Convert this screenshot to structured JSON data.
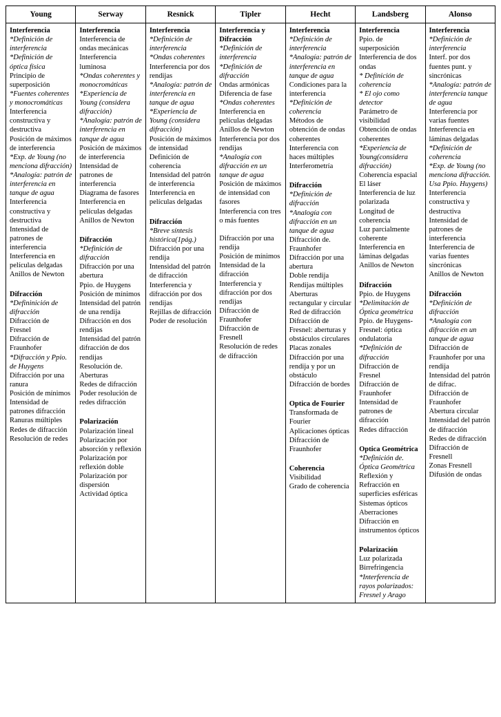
{
  "headers": [
    "Young",
    "Serway",
    "Resnick",
    "Tipler",
    "Hecht",
    "Landsberg",
    "Alonso"
  ],
  "columns": [
    {
      "lines": [
        {
          "t": "Interferencia",
          "b": true
        },
        {
          "t": "*Definición de interferencia",
          "i": true
        },
        {
          "t": "*Definición de óptica física",
          "i": true
        },
        {
          "t": "Principio de superposición"
        },
        {
          "t": "*Fuentes coherentes y monocromáticas",
          "i": true
        },
        {
          "t": "Interferencia constructiva y destructiva"
        },
        {
          "t": "Posición de máximos de interferencia"
        },
        {
          "t": "*Exp. de Young (no menciona difracción)",
          "i": true
        },
        {
          "t": "*Analogía: patrón de interferencia en tanque de agua",
          "i": true
        },
        {
          "t": "Interferencia constructiva y destructiva"
        },
        {
          "t": "Intensidad de patrones de interferencia"
        },
        {
          "t": "Interferencia en películas delgadas"
        },
        {
          "t": "Anillos  de Newton"
        },
        {
          "t": " "
        },
        {
          "t": "Difracción",
          "b": true
        },
        {
          "t": "*Defininición de difracción",
          "i": true
        },
        {
          "t": "Difracción de Fresnel"
        },
        {
          "t": "Difracción  de Fraunhofer"
        },
        {
          "t": "*Difracción y Ppio. de Huygens",
          "i": true
        },
        {
          "t": "Difracción por una ranura"
        },
        {
          "t": "Posición de mínimos"
        },
        {
          "t": "Intensidad de patrones difracción"
        },
        {
          "t": "Ranuras múltiples"
        },
        {
          "t": "Redes de difracción"
        },
        {
          "t": "Resolución de redes"
        }
      ]
    },
    {
      "lines": [
        {
          "t": "Interferencia",
          "b": true
        },
        {
          "t": "Interferencia de ondas mecánicas"
        },
        {
          "t": "Interferencia luminosa"
        },
        {
          "t": "*Ondas coherentes y monocromáticas",
          "i": true
        },
        {
          "t": "*Experiencia de Young (considera difracción)",
          "i": true
        },
        {
          "t": "*Analogía: patrón de interferencia en tanque de agua",
          "i": true
        },
        {
          "t": "Posición de máximos de interferencia"
        },
        {
          "t": "Intensidad de patrones de interferencia"
        },
        {
          "t": "Diagrama de fasores"
        },
        {
          "t": "Interferencia en películas delgadas"
        },
        {
          "t": "Anillos de Newton"
        },
        {
          "t": " "
        },
        {
          "t": "Difracción",
          "b": true
        },
        {
          "t": "*Definición de difracción",
          "i": true
        },
        {
          "t": "Difracción por una abertura"
        },
        {
          "t": "Ppio. de Huygens"
        },
        {
          "t": "Posición de mínimos"
        },
        {
          "t": "Intensidad del patrón de una rendija"
        },
        {
          "t": "Difracción en dos rendijas"
        },
        {
          "t": "Intensidad del patrón difracción de dos rendijas"
        },
        {
          "t": "Resolución de. Aberturas"
        },
        {
          "t": "Redes de difracción"
        },
        {
          "t": "Poder resolución de redes difracción"
        },
        {
          "t": " "
        },
        {
          "t": "Polarización",
          "b": true
        },
        {
          "t": "Polarización lineal"
        },
        {
          "t": "Polarización por absorción y reflexión"
        },
        {
          "t": "Polarización por reflexión doble"
        },
        {
          "t": "Polarización por dispersión"
        },
        {
          "t": "Actividad óptica"
        }
      ]
    },
    {
      "lines": [
        {
          "t": "Interferencia",
          "b": true
        },
        {
          "t": "*Definición de interferencia",
          "i": true
        },
        {
          "t": "*Ondas coherentes",
          "i": true
        },
        {
          "t": "Interferencia por dos rendijas"
        },
        {
          "t": "*Analogía: patrón de interferencia en tanque de agua",
          "i": true
        },
        {
          "t": "*Experiencia de Young (considera difracción)",
          "i": true
        },
        {
          "t": "Posición de máximos de intensidad"
        },
        {
          "t": "Definición de coherencia"
        },
        {
          "t": "Intensidad del patrón de interferencia"
        },
        {
          "t": "Interferencia  en películas delgadas"
        },
        {
          "t": " "
        },
        {
          "t": "Difracción",
          "b": true
        },
        {
          "t": "*Breve síntesis histórica(1pág.)",
          "i": true
        },
        {
          "t": "Difracción por una rendija"
        },
        {
          "t": "Intensidad del patrón de difracción"
        },
        {
          "t": "Interferencia y difracción por dos rendijas"
        },
        {
          "t": "Rejillas de difracción"
        },
        {
          "t": "Poder de resolución"
        }
      ]
    },
    {
      "lines": [
        {
          "t": "Interferencia y Difracción",
          "b": true
        },
        {
          "t": "*Definición de interferencia",
          "i": true
        },
        {
          "t": "*Definición de difracción",
          "i": true
        },
        {
          "t": "Ondas armónicas"
        },
        {
          "t": "Diferencia de fase"
        },
        {
          "t": "*Ondas coherentes",
          "i": true
        },
        {
          "t": "Interferencia  en películas delgadas"
        },
        {
          "t": "Anillos de Newton"
        },
        {
          "t": "Interferencia por dos rendijas"
        },
        {
          "t": "*Analogía con difracción en un tanque de agua",
          "i": true
        },
        {
          "t": "Posición de máximos de intensidad con fasores"
        },
        {
          "t": "Interferencia  con tres o más fuentes"
        },
        {
          "t": " "
        },
        {
          "t": "Difracción por una rendija"
        },
        {
          "t": "Posición de mínimos"
        },
        {
          "t": "Intensidad de la difracción"
        },
        {
          "t": "Interferencia y difracción por dos rendijas"
        },
        {
          "t": "Difracción  de Fraunhofer"
        },
        {
          "t": "Difracción de Fresnell"
        },
        {
          "t": "Resolución de redes de difracción"
        }
      ]
    },
    {
      "lines": [
        {
          "t": "Interferencia",
          "b": true
        },
        {
          "t": "*Definición de interferencia",
          "i": true
        },
        {
          "t": "*Analogía: patrón de interferencia  en tanque de agua",
          "i": true
        },
        {
          "t": "Condiciones para la interferencia"
        },
        {
          "t": "*Definición de coherencia",
          "i": true
        },
        {
          "t": "Métodos de obtención  de ondas coherentes"
        },
        {
          "t": "Interferencia con haces múltiples"
        },
        {
          "t": "Interferometría"
        },
        {
          "t": " "
        },
        {
          "t": "Difracción",
          "b": true
        },
        {
          "t": "*Definición de difracción",
          "i": true
        },
        {
          "t": "*Analogía con difracción en un tanque de agua",
          "i": true
        },
        {
          "t": "Difracción de. Fraunhofer"
        },
        {
          "t": "Difracción por una abertura"
        },
        {
          "t": "Doble rendija"
        },
        {
          "t": "Rendijas múltiples"
        },
        {
          "t": "Aberturas rectangular y circular"
        },
        {
          "t": "Red de difracción"
        },
        {
          "t": "Difracción de Fresnel: aberturas y obstáculos circulares"
        },
        {
          "t": "Placas zonales"
        },
        {
          "t": "Difracción por una rendija y por un obstáculo"
        },
        {
          "t": "Difracción de bordes"
        },
        {
          "t": " "
        },
        {
          "t": "Optica de Fourier",
          "b": true
        },
        {
          "t": "Transformada de Fourier"
        },
        {
          "t": "Aplicaciones ópticas"
        },
        {
          "t": "Difracción de Fraunhofer"
        },
        {
          "t": " "
        },
        {
          "t": "Coherencia",
          "b": true
        },
        {
          "t": "Visibilidad"
        },
        {
          "t": "Grado de coherencia"
        }
      ]
    },
    {
      "lines": [
        {
          "t": "Interferencia",
          "b": true
        },
        {
          "t": "Ppio. de superposición"
        },
        {
          "t": "Interferencia de dos ondas"
        },
        {
          "t": "* Definición de coherencia",
          "i": true
        },
        {
          "t": "* El ojo como detector",
          "i": true
        },
        {
          "t": "Parámetro de visibilidad"
        },
        {
          "t": "Obtención de ondas coherentes"
        },
        {
          "t": "*Experiencia de Young(considera difracción)",
          "i": true
        },
        {
          "t": "Coherencia espacial"
        },
        {
          "t": "El láser"
        },
        {
          "t": "Interferencia de luz polarizada"
        },
        {
          "t": "Longitud de coherencia"
        },
        {
          "t": "Luz parcialmente coherente"
        },
        {
          "t": "Interferencia en láminas delgadas"
        },
        {
          "t": "Anillos de Newton"
        },
        {
          "t": " "
        },
        {
          "t": "Difracción",
          "b": true
        },
        {
          "t": "Ppio. de Huygens"
        },
        {
          "t": "*Delimitación de Óptica geométrica",
          "i": true
        },
        {
          "t": "Ppio. de Huygens-Fresnel: óptica ondulatoria"
        },
        {
          "t": "*Definición de difracción",
          "i": true
        },
        {
          "t": "Difracción de Fresnel"
        },
        {
          "t": "Difracción de Fraunhofer"
        },
        {
          "t": "Intensidad de patrones de difracción"
        },
        {
          "t": "Redes difracción"
        },
        {
          "t": " "
        },
        {
          "t": "Optica Geométrica",
          "b": true
        },
        {
          "t": "*Definición de. Óptica Geométrica",
          "i": true
        },
        {
          "t": "Reflexión y Refracción en superficies esféricas"
        },
        {
          "t": "Sistemas ópticos"
        },
        {
          "t": "Aberraciones"
        },
        {
          "t": "Difracción en instrumentos ópticos"
        },
        {
          "t": " "
        },
        {
          "t": "Polarización",
          "b": true
        },
        {
          "t": "Luz polarizada"
        },
        {
          "t": "Birrefringencia"
        },
        {
          "t": "*Interferencia de rayos polarizados: Fresnel y Arago",
          "i": true
        }
      ]
    },
    {
      "lines": [
        {
          "t": "Interferencia",
          "b": true
        },
        {
          "t": "*Definición de interferencia",
          "i": true
        },
        {
          "t": "Interf. por dos fuentes punt. y sincrónicas"
        },
        {
          "t": "*Analogía: patrón de interferencia tanque de agua",
          "i": true
        },
        {
          "t": "Interferencia por varias fuentes"
        },
        {
          "t": "Interferencia en láminas delgadas"
        },
        {
          "t": "*Definición  de coherencia",
          "i": true
        },
        {
          "t": "*Exp. de Young (no menciona difracción. Usa Ppio. Huygens)",
          "i": true
        },
        {
          "t": "Interferencia constructiva y destructiva"
        },
        {
          "t": "Intensidad de patrones de interferencia"
        },
        {
          "t": "Interferencia de varias fuentes sincrónicas"
        },
        {
          "t": "Anillos  de Newton"
        },
        {
          "t": " "
        },
        {
          "t": "Difracción",
          "b": true
        },
        {
          "t": "*Definición  de difracción",
          "i": true
        },
        {
          "t": "*Analogía con difracción en un tanque de agua",
          "i": true
        },
        {
          "t": "Difracción de Fraunhofer  por una rendija"
        },
        {
          "t": "Intensidad del patrón de difrac."
        },
        {
          "t": "Difracción de Fraunhofer"
        },
        {
          "t": "Abertura circular"
        },
        {
          "t": "Intensidad del patrón de difracción"
        },
        {
          "t": "Redes de difracción"
        },
        {
          "t": "Difracción de Fresnell"
        },
        {
          "t": "Zonas Fresnell"
        },
        {
          "t": "Difusión de ondas"
        }
      ]
    }
  ]
}
